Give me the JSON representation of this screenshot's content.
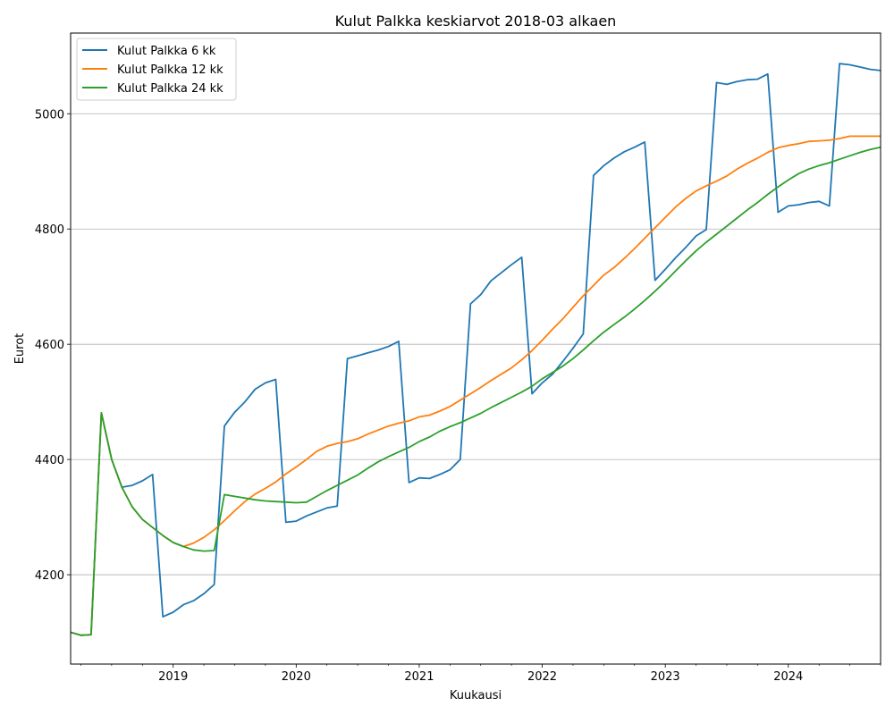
{
  "chart_data": {
    "type": "line",
    "title": "Kulut Palkka keskiarvot 2018-03 alkaen",
    "xlabel": "Kuukausi",
    "ylabel": "Eurot",
    "x_start": "2018-03",
    "x_end": "2024-10",
    "x_tick_labels": [
      "2019",
      "2020",
      "2021",
      "2022",
      "2023",
      "2024"
    ],
    "ylim": [
      4045,
      5140
    ],
    "y_ticks": [
      4200,
      4400,
      4600,
      4800,
      5000
    ],
    "grid": "horizontal",
    "legend_position": "top-left",
    "colors": [
      "#1f77b4",
      "#ff7f0e",
      "#2ca02c"
    ],
    "x": [
      "2018-03",
      "2018-04",
      "2018-05",
      "2018-06",
      "2018-07",
      "2018-08",
      "2018-09",
      "2018-10",
      "2018-11",
      "2018-12",
      "2019-01",
      "2019-02",
      "2019-03",
      "2019-04",
      "2019-05",
      "2019-06",
      "2019-07",
      "2019-08",
      "2019-09",
      "2019-10",
      "2019-11",
      "2019-12",
      "2020-01",
      "2020-02",
      "2020-03",
      "2020-04",
      "2020-05",
      "2020-06",
      "2020-07",
      "2020-08",
      "2020-09",
      "2020-10",
      "2020-11",
      "2020-12",
      "2021-01",
      "2021-02",
      "2021-03",
      "2021-04",
      "2021-05",
      "2021-06",
      "2021-07",
      "2021-08",
      "2021-09",
      "2021-10",
      "2021-11",
      "2021-12",
      "2022-01",
      "2022-02",
      "2022-03",
      "2022-04",
      "2022-05",
      "2022-06",
      "2022-07",
      "2022-08",
      "2022-09",
      "2022-10",
      "2022-11",
      "2022-12",
      "2023-01",
      "2023-02",
      "2023-03",
      "2023-04",
      "2023-05",
      "2023-06",
      "2023-07",
      "2023-08",
      "2023-09",
      "2023-10",
      "2023-11",
      "2023-12",
      "2024-01",
      "2024-02",
      "2024-03",
      "2024-04",
      "2024-05",
      "2024-06",
      "2024-07",
      "2024-08",
      "2024-09",
      "2024-10"
    ],
    "series": [
      {
        "name": "Kulut Palkka 6 kk",
        "values": [
          4100,
          4095,
          4096,
          4481,
          4400,
          4352,
          4355,
          4363,
          4374,
          4127,
          4135,
          4148,
          4155,
          4167,
          4183,
          4458,
          4482,
          4500,
          4522,
          4533,
          4539,
          4291,
          4293,
          4302,
          4309,
          4316,
          4319,
          4575,
          4580,
          4585,
          4590,
          4596,
          4605,
          4360,
          4368,
          4367,
          4374,
          4382,
          4400,
          4670,
          4686,
          4710,
          4724,
          4738,
          4751,
          4514,
          4533,
          4548,
          4570,
          4593,
          4618,
          4893,
          4910,
          4923,
          4934,
          4942,
          4951,
          4711,
          4730,
          4750,
          4768,
          4788,
          4799,
          5054,
          5051,
          5056,
          5059,
          5060,
          5069,
          4829,
          4840,
          4842,
          4846,
          4848,
          4840,
          5087,
          5085,
          5081,
          5077,
          5075
        ]
      },
      {
        "name": "Kulut Palkka 12 kk",
        "values": [
          4100,
          4095,
          4096,
          4481,
          4400,
          4352,
          4318,
          4296,
          4282,
          4268,
          4256,
          4249,
          4255,
          4265,
          4278,
          4294,
          4311,
          4327,
          4340,
          4350,
          4361,
          4375,
          4387,
          4400,
          4414,
          4423,
          4428,
          4431,
          4436,
          4444,
          4451,
          4458,
          4463,
          4467,
          4474,
          4477,
          4484,
          4492,
          4503,
          4514,
          4525,
          4537,
          4548,
          4559,
          4573,
          4589,
          4607,
          4626,
          4644,
          4664,
          4684,
          4702,
          4720,
          4733,
          4749,
          4766,
          4784,
          4802,
          4820,
          4838,
          4853,
          4866,
          4875,
          4883,
          4892,
          4904,
          4914,
          4923,
          4933,
          4941,
          4945,
          4948,
          4952,
          4953,
          4954,
          4957,
          4961,
          4961,
          4961,
          4961
        ]
      },
      {
        "name": "Kulut Palkka 24 kk",
        "values": [
          4100,
          4095,
          4096,
          4481,
          4400,
          4352,
          4318,
          4296,
          4282,
          4268,
          4256,
          4249,
          4243,
          4241,
          4242,
          4339,
          4336,
          4333,
          4330,
          4328,
          4327,
          4326,
          4325,
          4326,
          4336,
          4346,
          4355,
          4364,
          4373,
          4385,
          4396,
          4405,
          4413,
          4421,
          4431,
          4439,
          4449,
          4457,
          4464,
          4472,
          4480,
          4490,
          4499,
          4508,
          4517,
          4527,
          4540,
          4551,
          4562,
          4575,
          4590,
          4606,
          4621,
          4634,
          4647,
          4661,
          4676,
          4692,
          4709,
          4727,
          4745,
          4762,
          4777,
          4791,
          4805,
          4819,
          4833,
          4846,
          4860,
          4873,
          4885,
          4896,
          4904,
          4910,
          4915,
          4921,
          4927,
          4933,
          4938,
          4942
        ]
      }
    ]
  }
}
